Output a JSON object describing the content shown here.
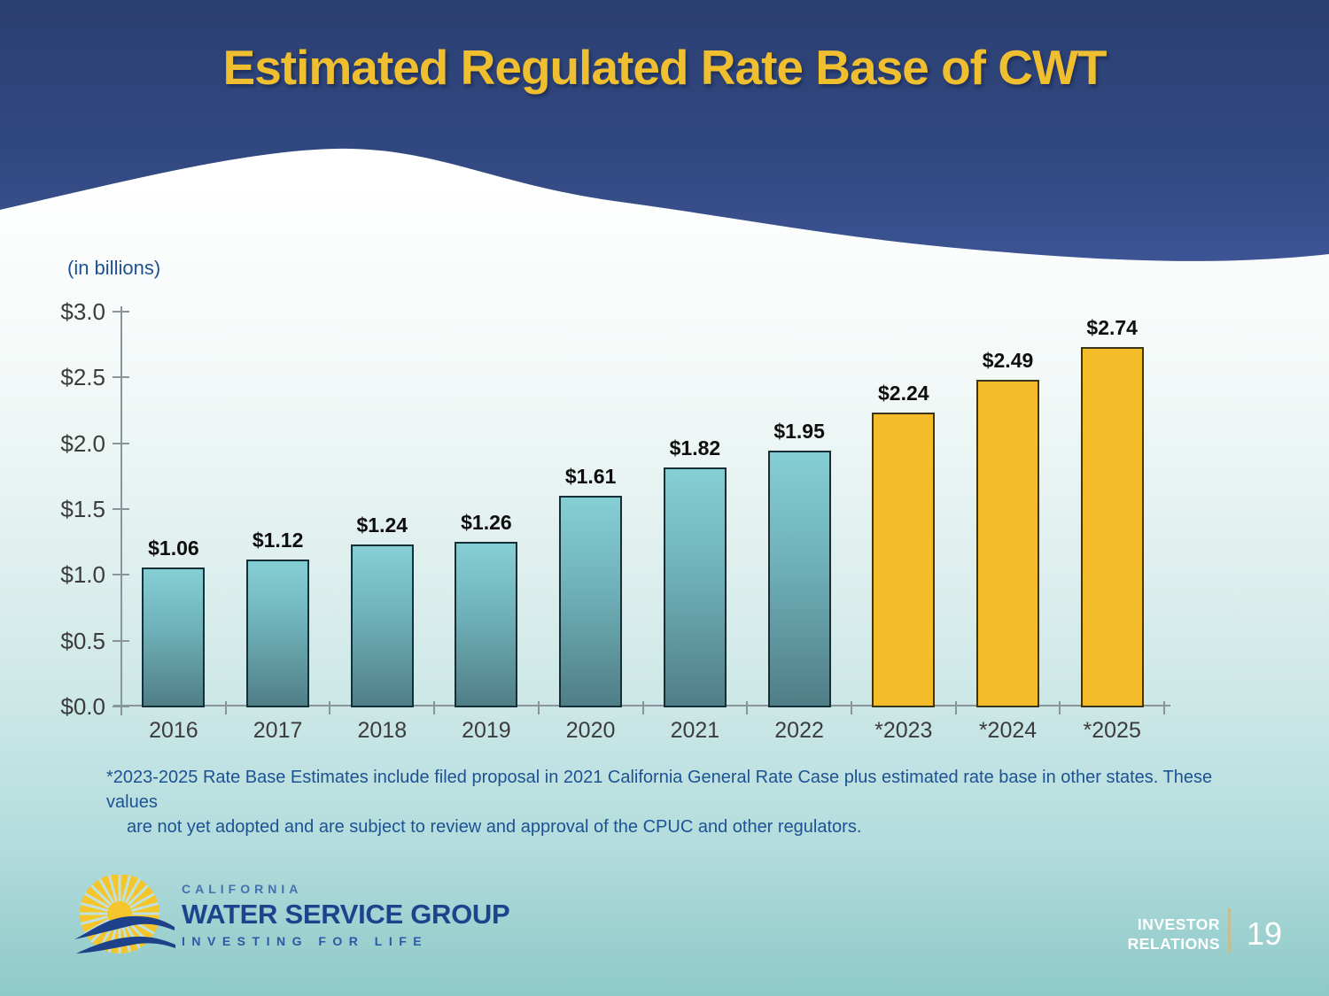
{
  "slide": {
    "title": "Estimated Regulated Rate Base of CWT",
    "units_label": "(in billions)",
    "footnote_lines": [
      "*2023-2025 Rate Base Estimates include filed proposal in 2021 California General Rate Case plus estimated rate base in other states. These values",
      "are not yet adopted and are subject to review and approval of the CPUC and other regulators."
    ],
    "footer_label": [
      "INVESTOR",
      "RELATIONS"
    ],
    "page_number": "19"
  },
  "logo": {
    "icon": "sun-over-waves-icon",
    "company_location": "CALIFORNIA",
    "company_name": "WATER SERVICE GROUP",
    "tagline": "INVESTING FOR LIFE"
  },
  "colors": {
    "header_navy_top": "#2B3F72",
    "header_navy_bottom": "#3D5494",
    "title_yellow": "#EFBF2F",
    "historical_bar_top": "#85CFD4",
    "historical_bar_bottom": "#507E87",
    "historical_bar_border": "#152F38",
    "estimate_bar": "#F5BC29",
    "footnote_blue": "#1C5293",
    "axis_gray": "#8A949B",
    "footer_divider_tan": "#C8BE8D"
  },
  "chart_data": {
    "type": "bar",
    "title": "Estimated Regulated Rate Base of CWT",
    "units_label": "(in billions)",
    "categories": [
      "2016",
      "2017",
      "2018",
      "2019",
      "2020",
      "2021",
      "2022",
      "*2023",
      "*2024",
      "*2025"
    ],
    "values": [
      1.06,
      1.12,
      1.24,
      1.26,
      1.61,
      1.82,
      1.95,
      2.24,
      2.49,
      2.74
    ],
    "value_labels": [
      "$1.06",
      "$1.12",
      "$1.24",
      "$1.26",
      "$1.61",
      "$1.82",
      "$1.95",
      "$2.24",
      "$2.49",
      "$2.74"
    ],
    "estimate_start_index": 7,
    "ylim": [
      0,
      3.0
    ],
    "y_tick_step": 0.5,
    "y_tick_labels": [
      "$3.0",
      "$2.5",
      "$2.0",
      "$1.5",
      "$1.0",
      "$0.5",
      "$0.0"
    ],
    "grid": false,
    "legend": false
  }
}
